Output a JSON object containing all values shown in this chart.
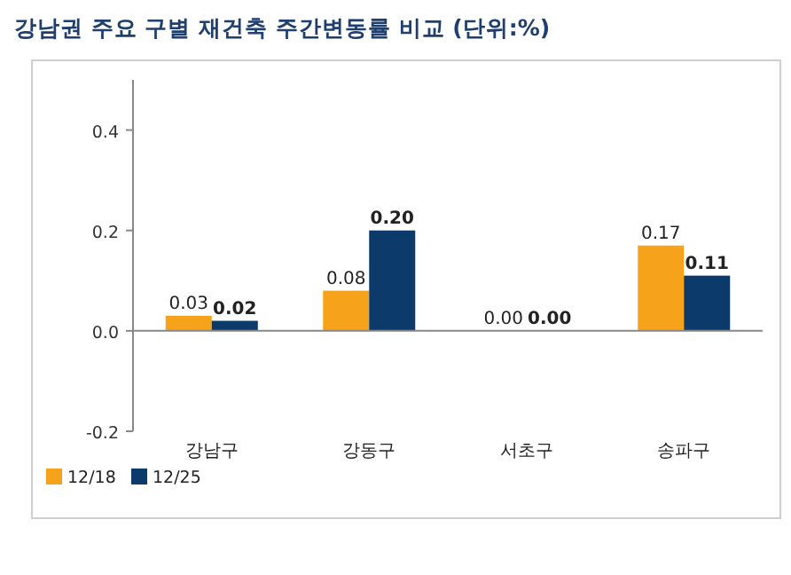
{
  "chart_data": {
    "type": "bar",
    "title": "강남권 주요 구별 재건축 주간변동률 비교 (단위:%)",
    "categories": [
      "강남구",
      "강동구",
      "서초구",
      "송파구"
    ],
    "series": [
      {
        "name": "12/18",
        "color": "#f7a21b",
        "values": [
          0.03,
          0.08,
          0.0,
          0.17
        ],
        "value_labels": [
          "0.03",
          "0.08",
          "0.00",
          "0.17"
        ]
      },
      {
        "name": "12/25",
        "color": "#0c3a6a",
        "values": [
          0.02,
          0.2,
          0.0,
          0.11
        ],
        "value_labels": [
          "0.02",
          "0.20",
          "0.00",
          "0.11"
        ]
      }
    ],
    "ylim": [
      -0.2,
      0.5
    ],
    "yticks": [
      -0.2,
      {
        "value": 0,
        "label": "0.0"
      },
      0.2,
      0.4
    ],
    "legend": "bottom left"
  }
}
